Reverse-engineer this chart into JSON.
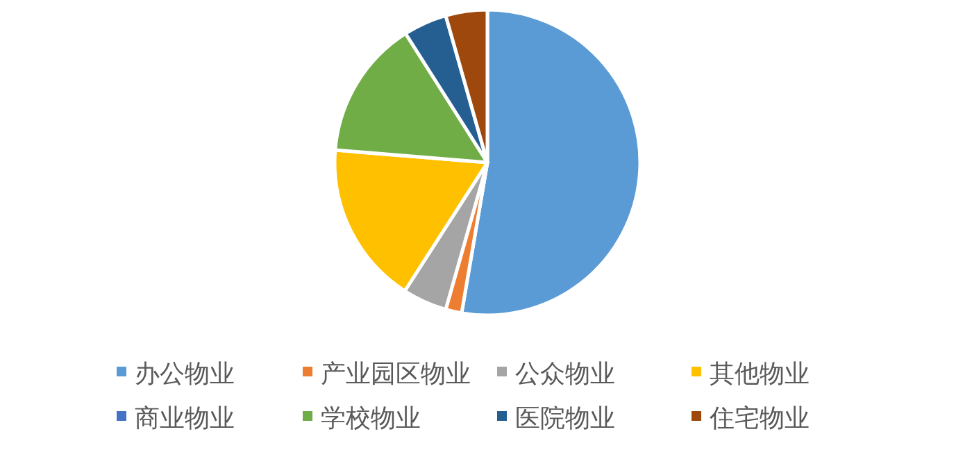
{
  "chart_data": {
    "type": "pie",
    "categories": [
      "办公物业",
      "产业园区物业",
      "公众物业",
      "其他物业",
      "商业物业",
      "学校物业",
      "医院物业",
      "住宅物业"
    ],
    "values": [
      52.7,
      1.7,
      4.7,
      17.2,
      null,
      14.7,
      4.6,
      4.4
    ],
    "colors": [
      "#5b9bd5",
      "#ed7d31",
      "#a5a5a5",
      "#ffc000",
      "#4472c4",
      "#70ad47",
      "#255e91",
      "#9e480e"
    ],
    "legend": "bottom"
  }
}
